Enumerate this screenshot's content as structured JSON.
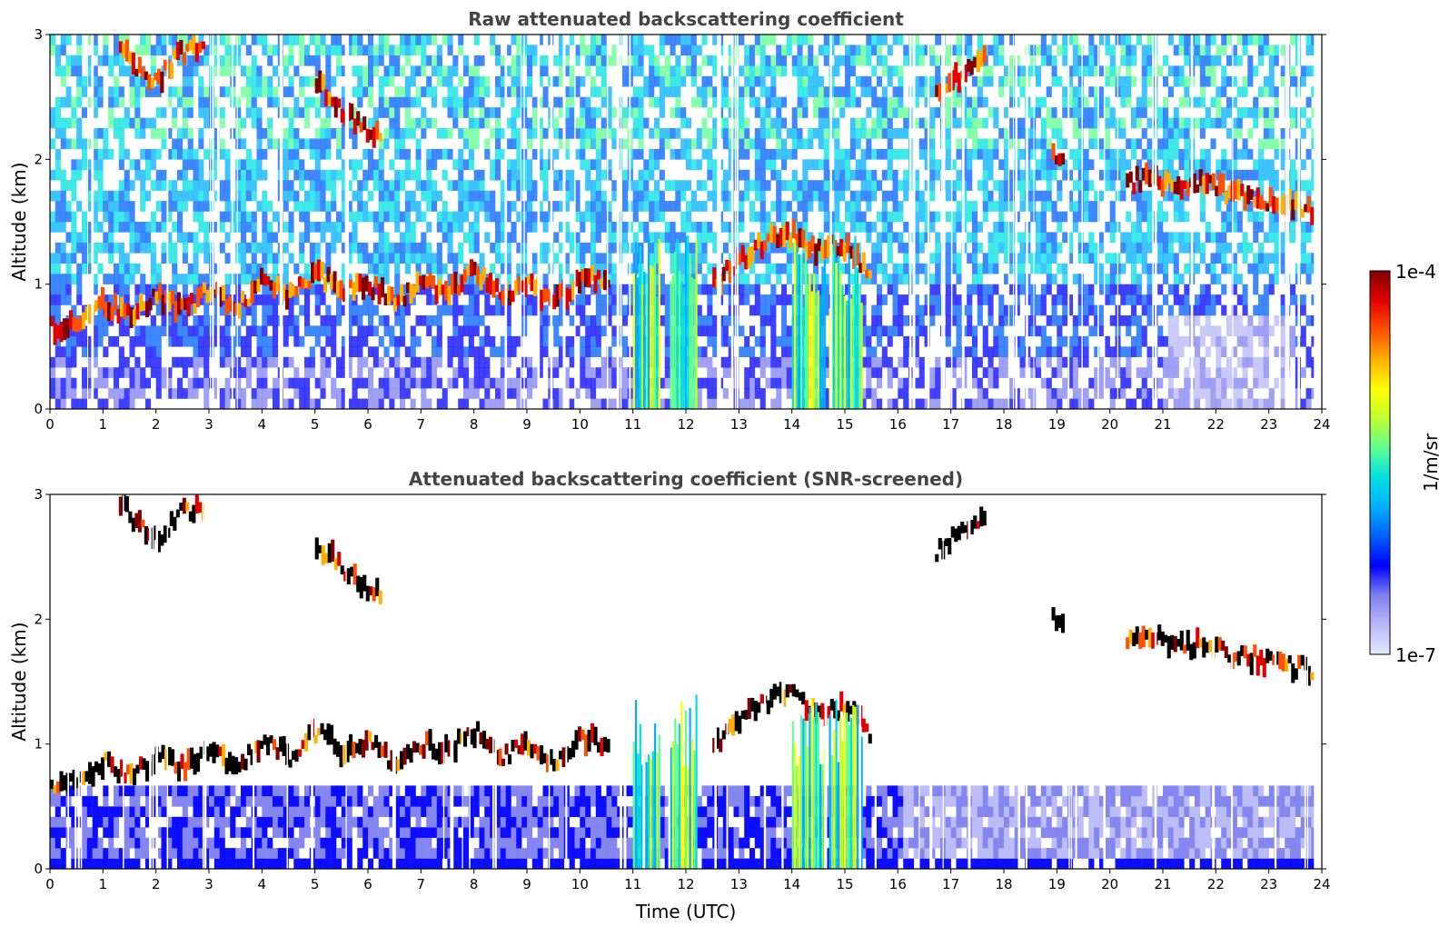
{
  "chart_data": [
    {
      "type": "heatmap",
      "title": "Raw attenuated backscattering coefficient",
      "xlabel": "",
      "ylabel": "Altitude (km)",
      "xlim": [
        0,
        24
      ],
      "ylim": [
        0,
        3
      ],
      "xticks": [
        "0",
        "1",
        "2",
        "3",
        "4",
        "5",
        "6",
        "7",
        "8",
        "9",
        "10",
        "11",
        "12",
        "13",
        "14",
        "15",
        "16",
        "17",
        "18",
        "19",
        "20",
        "21",
        "22",
        "23",
        "24"
      ],
      "yticks": [
        "0",
        "1",
        "2",
        "3"
      ],
      "features": [
        {
          "kind": "cloud_layer",
          "x": [
            0.0,
            0.5,
            1.0,
            1.5,
            2.0,
            2.5,
            3.0,
            3.5,
            4.0,
            4.5,
            5.0,
            5.5,
            6.0,
            6.5,
            7.0,
            7.5,
            8.0,
            8.5,
            9.0,
            9.5,
            10.0,
            10.5
          ],
          "y": [
            0.65,
            0.7,
            0.85,
            0.75,
            0.9,
            0.8,
            0.95,
            0.8,
            1.05,
            0.9,
            1.1,
            0.95,
            1.0,
            0.85,
            1.0,
            0.95,
            1.1,
            0.9,
            1.0,
            0.85,
            1.05,
            1.0
          ]
        },
        {
          "kind": "cloud_layer",
          "x": [
            12.5,
            13.0,
            13.5,
            14.0,
            14.5,
            15.0,
            15.5
          ],
          "y": [
            1.0,
            1.2,
            1.35,
            1.4,
            1.25,
            1.3,
            1.05
          ]
        },
        {
          "kind": "cloud_layer",
          "x": [
            20.3,
            20.8,
            21.3,
            21.8,
            22.3,
            22.8,
            23.3,
            23.8
          ],
          "y": [
            1.82,
            1.85,
            1.78,
            1.8,
            1.72,
            1.68,
            1.63,
            1.6
          ]
        },
        {
          "kind": "cloud_layer",
          "x": [
            1.3,
            1.6,
            2.0,
            2.4,
            2.9
          ],
          "y": [
            2.95,
            2.75,
            2.62,
            2.85,
            2.9
          ]
        },
        {
          "kind": "cloud_layer",
          "x": [
            5.0,
            5.3,
            5.6,
            5.9,
            6.2
          ],
          "y": [
            2.6,
            2.5,
            2.35,
            2.25,
            2.22
          ]
        },
        {
          "kind": "cloud_layer",
          "x": [
            16.7,
            17.0,
            17.3,
            17.6
          ],
          "y": [
            2.55,
            2.65,
            2.7,
            2.8
          ]
        },
        {
          "kind": "cloud_layer",
          "x": [
            18.9,
            19.1
          ],
          "y": [
            2.05,
            1.95
          ]
        }
      ]
    },
    {
      "type": "heatmap",
      "title": "Attenuated backscattering coefficient (SNR-screened)",
      "xlabel": "Time (UTC)",
      "ylabel": "Altitude (km)",
      "xlim": [
        0,
        24
      ],
      "ylim": [
        0,
        3
      ],
      "xticks": [
        "0",
        "1",
        "2",
        "3",
        "4",
        "5",
        "6",
        "7",
        "8",
        "9",
        "10",
        "11",
        "12",
        "13",
        "14",
        "15",
        "16",
        "17",
        "18",
        "19",
        "20",
        "21",
        "22",
        "23",
        "24"
      ],
      "yticks": [
        "0",
        "1",
        "2",
        "3"
      ]
    }
  ],
  "colorbar": {
    "label": "1/m/sr",
    "max_label": "1e-4",
    "min_label": "1e-7",
    "colors": [
      "#e8e8fb",
      "#b8b8f8",
      "#8080f0",
      "#0000ff",
      "#0060ff",
      "#00b0ff",
      "#00e0e0",
      "#60ff90",
      "#c0ff30",
      "#ffff00",
      "#ffb000",
      "#ff5000",
      "#e00000",
      "#800000"
    ]
  }
}
